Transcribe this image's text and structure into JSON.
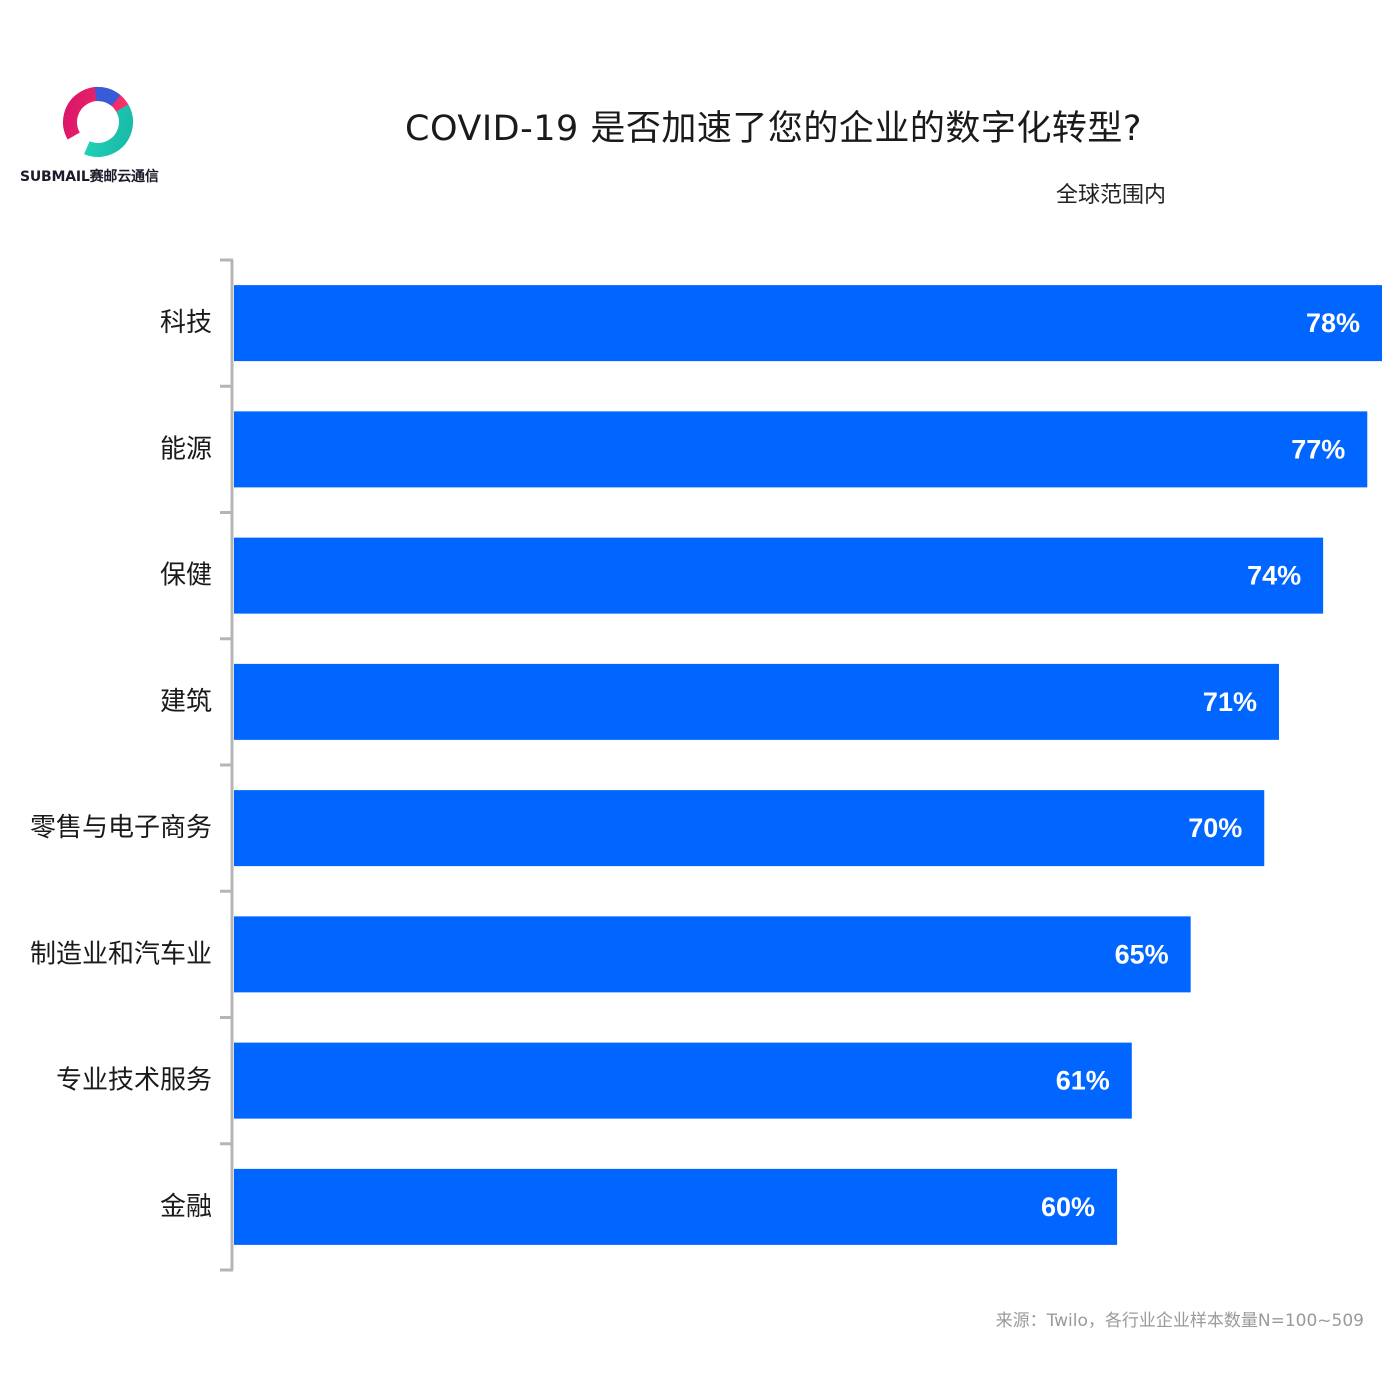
{
  "logo": {
    "text": "SUBMAIL赛邮云通信",
    "icon": "submail-ring-logo",
    "colors": [
      "#e8195c",
      "#2cd8b8",
      "#3a5bd9"
    ]
  },
  "colors": {
    "bar": "#0066ff",
    "bar_label": "#ffffff",
    "axis": "#b5b5b5",
    "category_label": "#1a1a1a"
  },
  "chart_data": {
    "type": "bar",
    "orientation": "horizontal",
    "title": "COVID-19 是否加速了您的企业的数字化转型?",
    "subtitle": "全球范围内",
    "categories": [
      "科技",
      "能源",
      "保健",
      "建筑",
      "零售与电子商务",
      "制造业和汽车业",
      "专业技术服务",
      "金融"
    ],
    "values": [
      78,
      77,
      74,
      71,
      70,
      65,
      61,
      60
    ],
    "value_labels": [
      "78%",
      "77%",
      "74%",
      "71%",
      "70%",
      "65%",
      "61%",
      "60%"
    ],
    "unit": "%",
    "xlim": [
      0,
      78
    ],
    "grid": false,
    "legend": "none"
  },
  "source": "来源：Twilo，各行业企业样本数量N=100~509"
}
